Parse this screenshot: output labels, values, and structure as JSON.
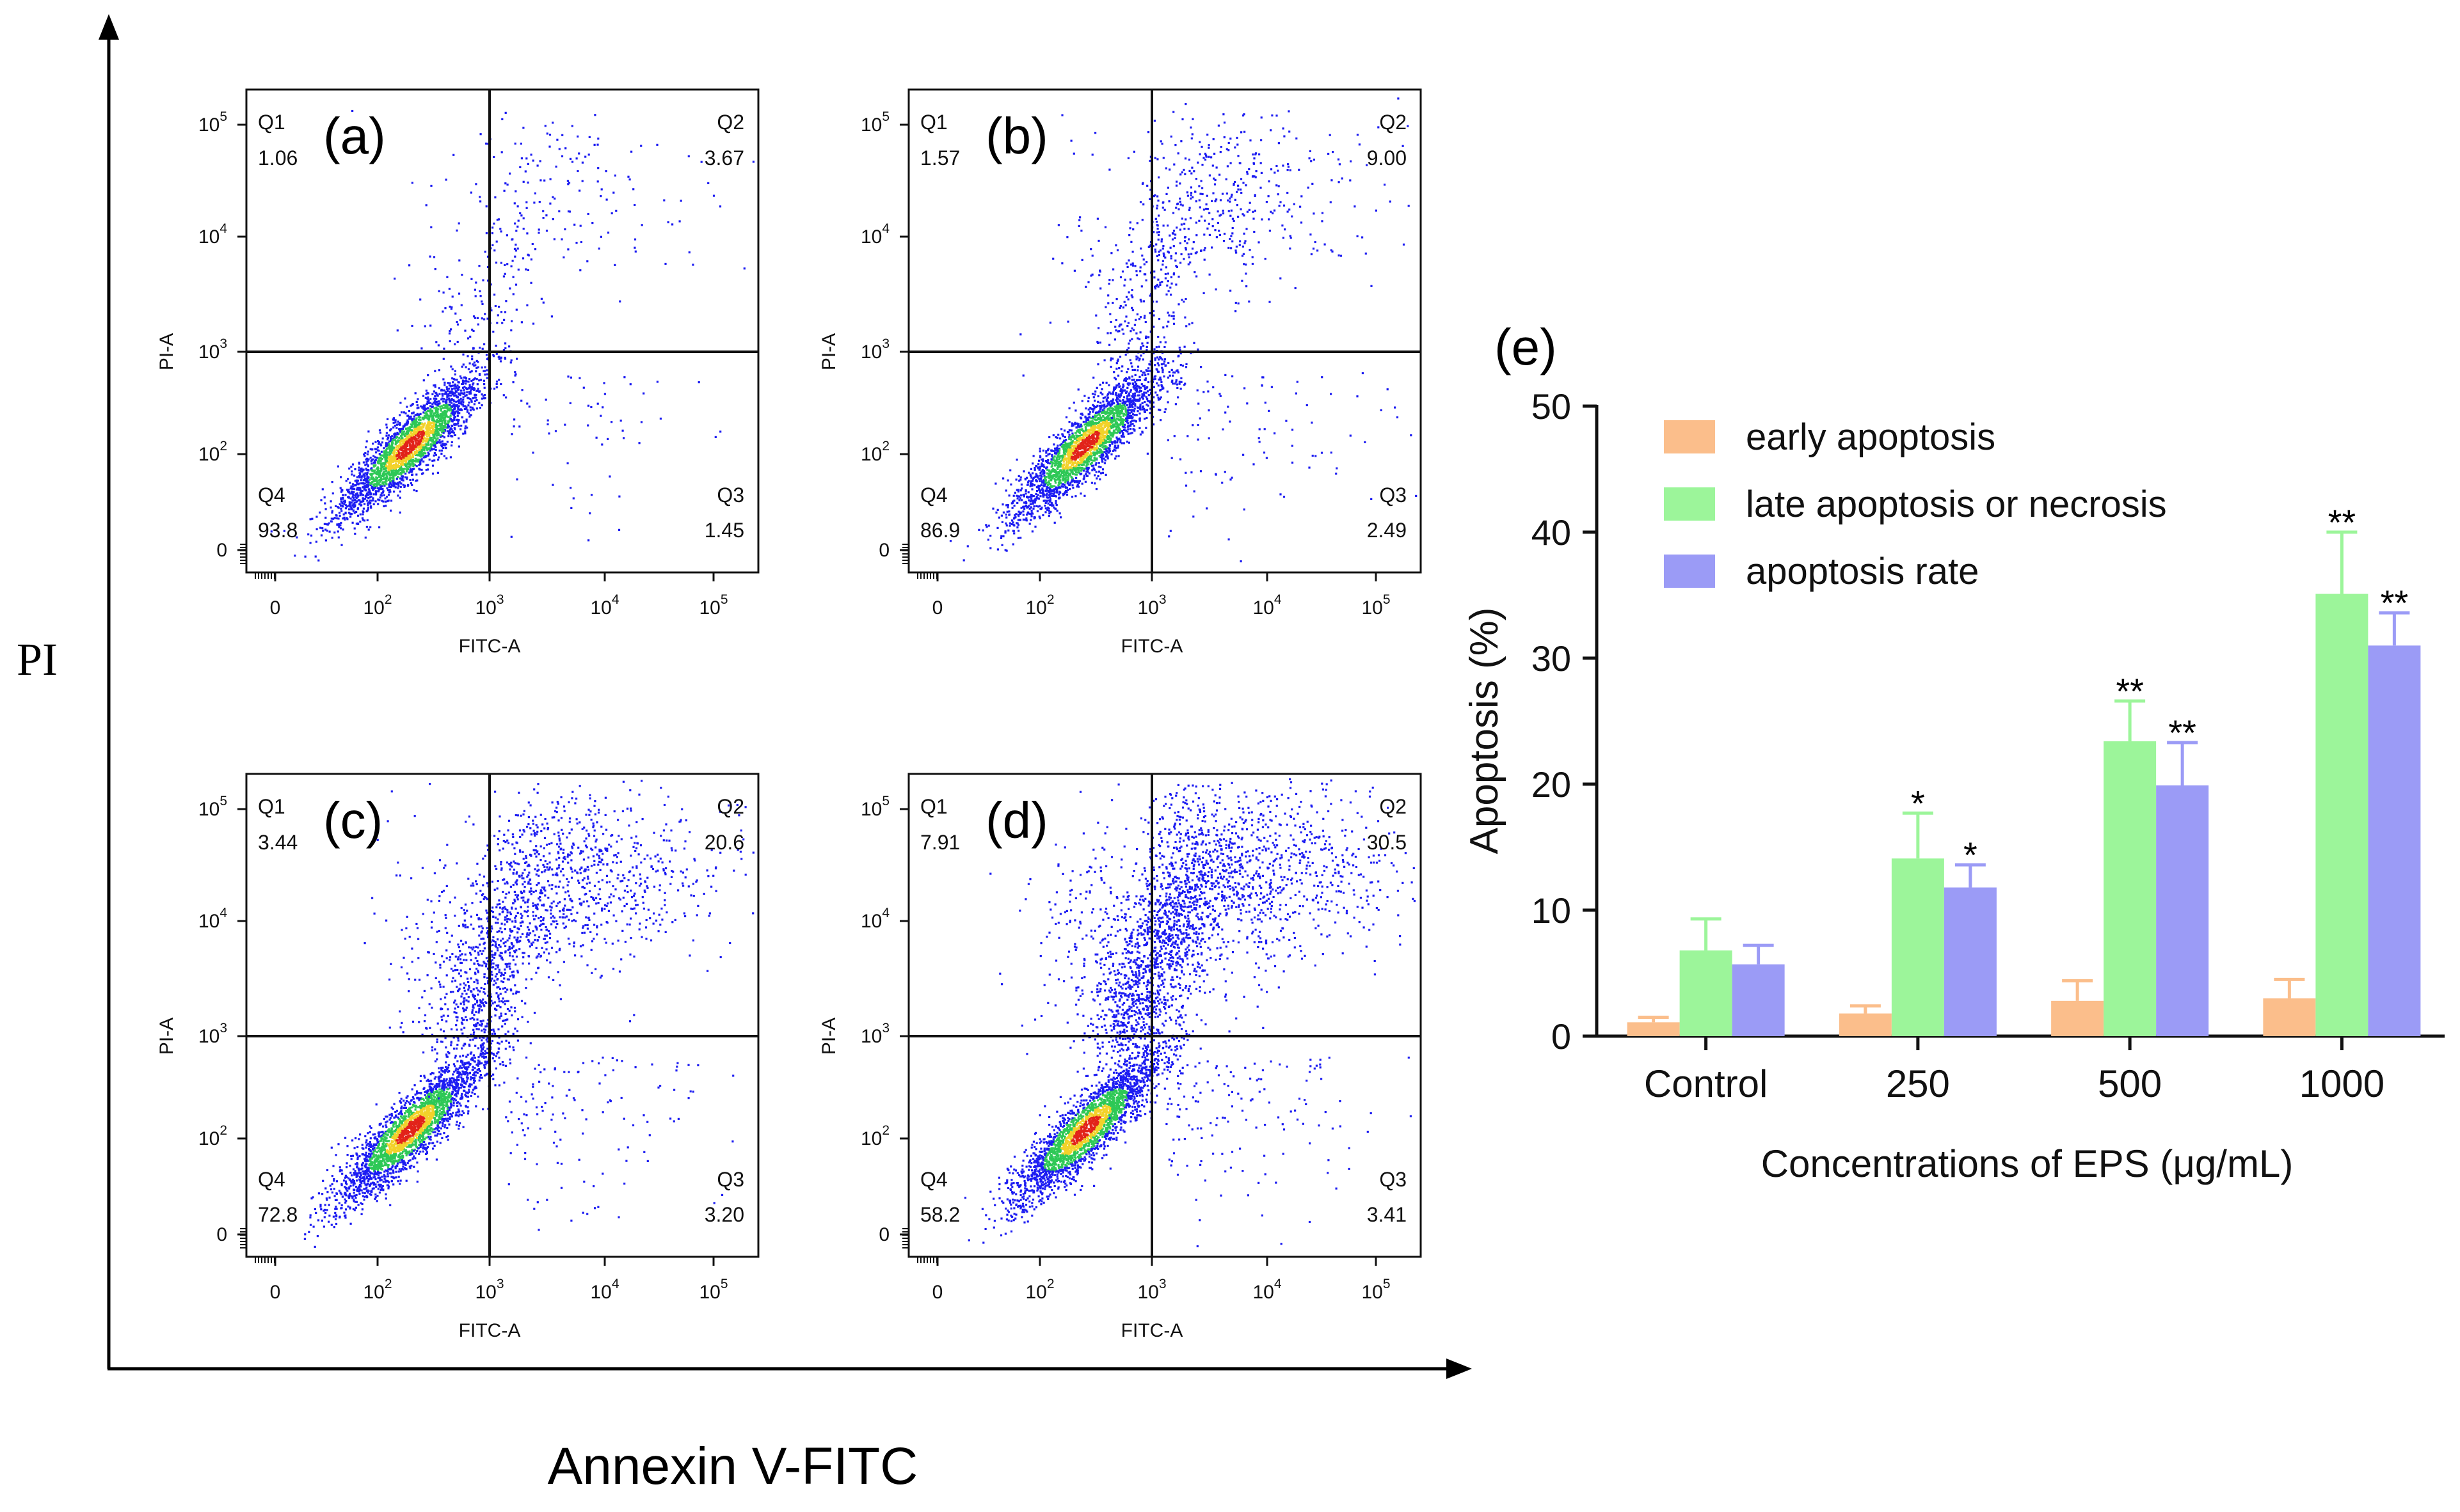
{
  "figure": {
    "outer_x_label": "Annexin V-FITC",
    "outer_y_label": "PI"
  },
  "flow_panels": [
    {
      "panel_label": "(a)",
      "x_axis_label": "FITC-A",
      "y_axis_label": "PI-A",
      "x_ticks": [
        "0",
        "10",
        "10",
        "10",
        "10"
      ],
      "x_exps": [
        "",
        "2",
        "3",
        "4",
        "5"
      ],
      "y_ticks": [
        "0",
        "10",
        "10",
        "10",
        "10"
      ],
      "y_exps": [
        "",
        "2",
        "3",
        "4",
        "5"
      ],
      "quadrants": {
        "Q1": {
          "name": "Q1",
          "value": "1.06"
        },
        "Q2": {
          "name": "Q2",
          "value": "3.67"
        },
        "Q3": {
          "name": "Q3",
          "value": "1.45"
        },
        "Q4": {
          "name": "Q4",
          "value": "93.8"
        }
      }
    },
    {
      "panel_label": "(b)",
      "x_axis_label": "FITC-A",
      "y_axis_label": "PI-A",
      "x_ticks": [
        "0",
        "10",
        "10",
        "10",
        "10"
      ],
      "x_exps": [
        "",
        "2",
        "3",
        "4",
        "5"
      ],
      "y_ticks": [
        "0",
        "10",
        "10",
        "10",
        "10"
      ],
      "y_exps": [
        "",
        "2",
        "3",
        "4",
        "5"
      ],
      "quadrants": {
        "Q1": {
          "name": "Q1",
          "value": "1.57"
        },
        "Q2": {
          "name": "Q2",
          "value": "9.00"
        },
        "Q3": {
          "name": "Q3",
          "value": "2.49"
        },
        "Q4": {
          "name": "Q4",
          "value": "86.9"
        }
      }
    },
    {
      "panel_label": "(c)",
      "x_axis_label": "FITC-A",
      "y_axis_label": "PI-A",
      "x_ticks": [
        "0",
        "10",
        "10",
        "10",
        "10"
      ],
      "x_exps": [
        "",
        "2",
        "3",
        "4",
        "5"
      ],
      "y_ticks": [
        "0",
        "10",
        "10",
        "10",
        "10"
      ],
      "y_exps": [
        "",
        "2",
        "3",
        "4",
        "5"
      ],
      "quadrants": {
        "Q1": {
          "name": "Q1",
          "value": "3.44"
        },
        "Q2": {
          "name": "Q2",
          "value": "20.6"
        },
        "Q3": {
          "name": "Q3",
          "value": "3.20"
        },
        "Q4": {
          "name": "Q4",
          "value": "72.8"
        }
      }
    },
    {
      "panel_label": "(d)",
      "x_axis_label": "FITC-A",
      "y_axis_label": "PI-A",
      "x_ticks": [
        "0",
        "10",
        "10",
        "10",
        "10"
      ],
      "x_exps": [
        "",
        "2",
        "3",
        "4",
        "5"
      ],
      "y_ticks": [
        "0",
        "10",
        "10",
        "10",
        "10"
      ],
      "y_exps": [
        "",
        "2",
        "3",
        "4",
        "5"
      ],
      "quadrants": {
        "Q1": {
          "name": "Q1",
          "value": "7.91"
        },
        "Q2": {
          "name": "Q2",
          "value": "30.5"
        },
        "Q3": {
          "name": "Q3",
          "value": "3.41"
        },
        "Q4": {
          "name": "Q4",
          "value": "58.2"
        }
      }
    }
  ],
  "chart_data": {
    "type": "bar",
    "panel_label": "(e)",
    "title": "",
    "xlabel": "Concentrations of EPS (μg/mL)",
    "ylabel": "Apoptosis (%)",
    "ylim": [
      0,
      50
    ],
    "yticks": [
      0,
      10,
      20,
      30,
      40,
      50
    ],
    "ytick_labels": [
      "0",
      "10",
      "20",
      "30",
      "40",
      "50"
    ],
    "categories": [
      "Control",
      "250",
      "500",
      "1000"
    ],
    "legend_position": "top-left",
    "series": [
      {
        "name": "early apoptosis",
        "color": "#FBBE8B",
        "values": [
          1.1,
          1.8,
          2.8,
          3.0
        ],
        "errors": [
          0.4,
          0.6,
          1.6,
          1.5
        ],
        "significance": [
          "",
          "",
          "",
          ""
        ]
      },
      {
        "name": "late apoptosis or necrosis",
        "color": "#9CF59A",
        "values": [
          6.8,
          14.1,
          23.4,
          35.1
        ],
        "errors": [
          2.5,
          3.6,
          3.2,
          4.9
        ],
        "significance": [
          "",
          "*",
          "**",
          "**"
        ]
      },
      {
        "name": "apoptosis rate",
        "color": "#9B9BF6",
        "values": [
          5.7,
          11.8,
          19.9,
          31.0
        ],
        "errors": [
          1.5,
          1.8,
          3.4,
          2.6
        ],
        "significance": [
          "",
          "*",
          "**",
          "**"
        ]
      }
    ]
  },
  "colors": {
    "density_low": "#1C1CF2",
    "density_mid": "#2EC856",
    "density_high": "#F2D22A",
    "density_peak": "#E2231A"
  }
}
